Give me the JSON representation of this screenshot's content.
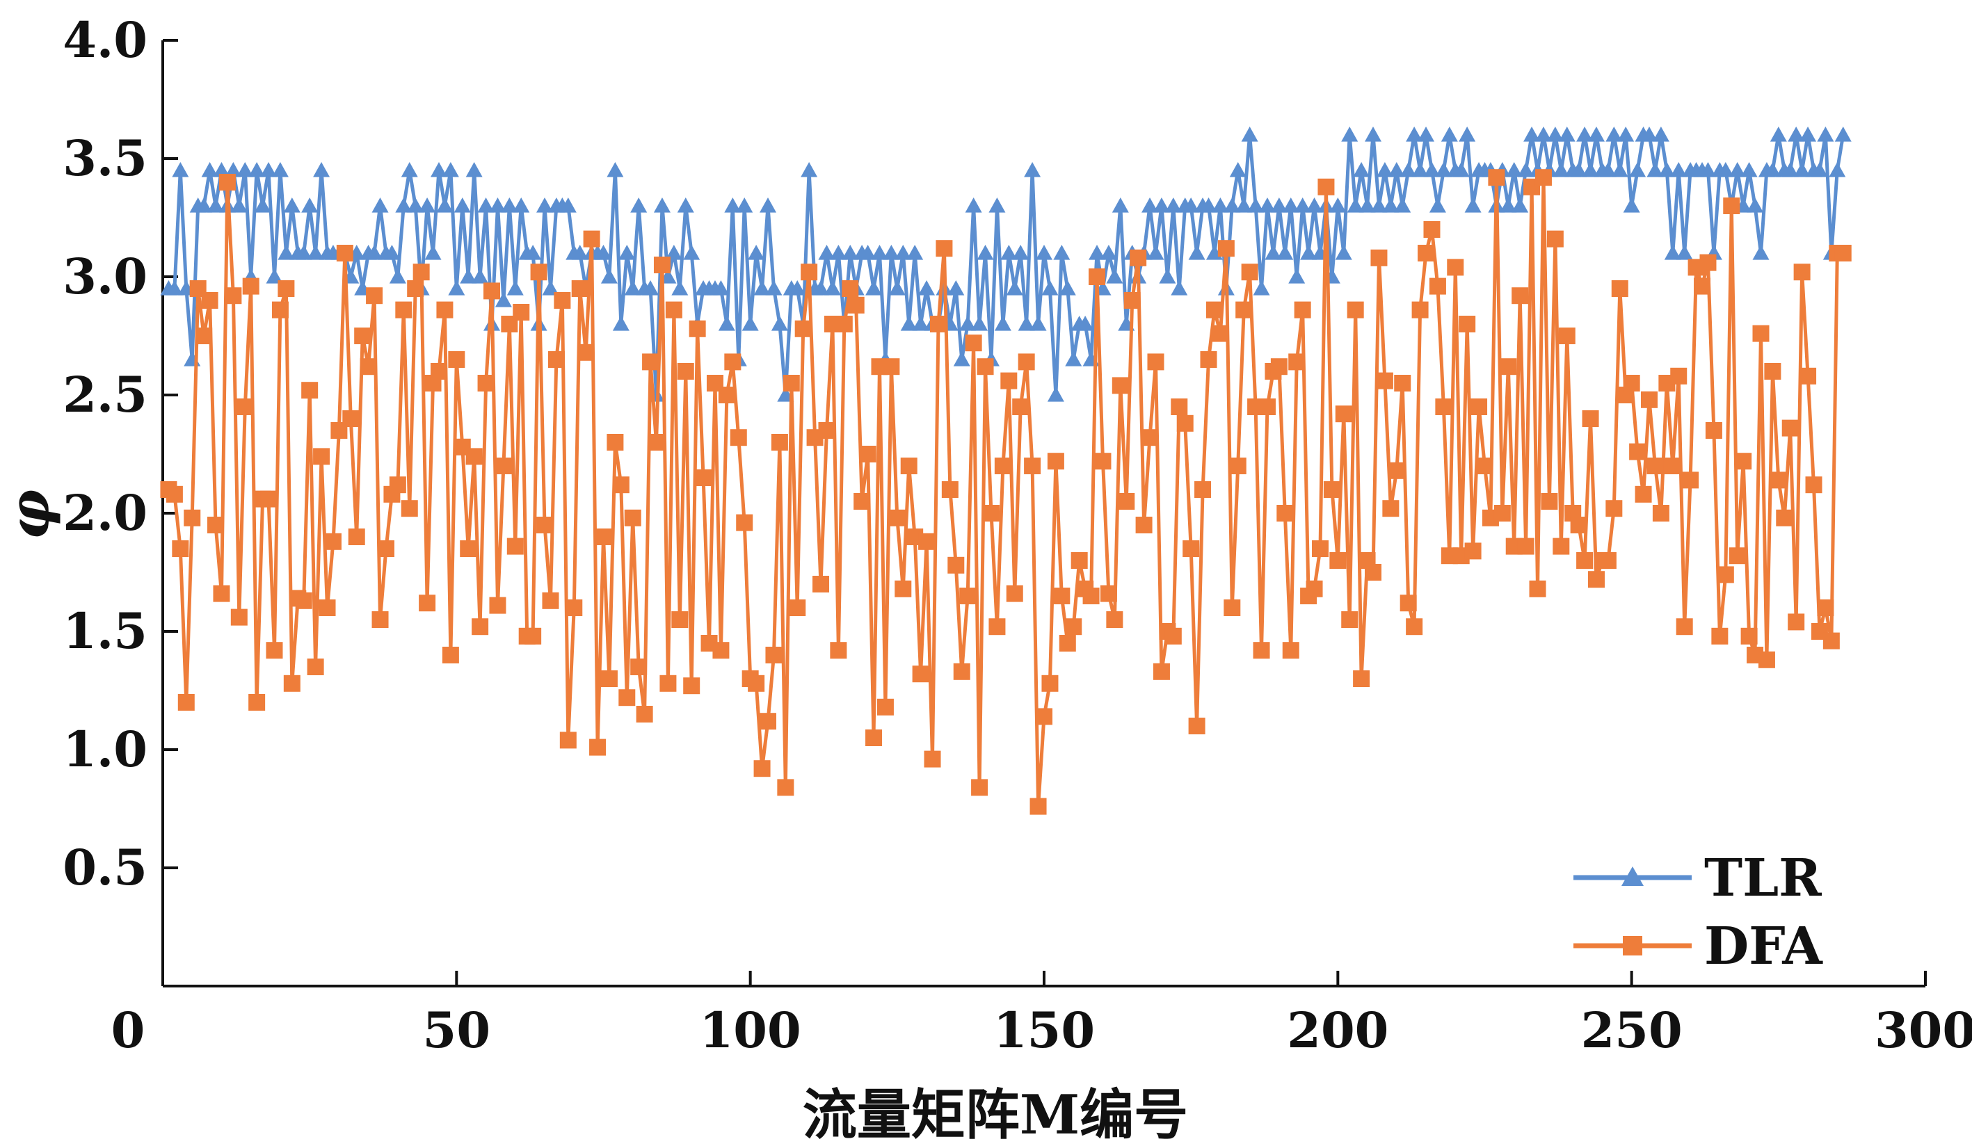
{
  "chart_data": {
    "type": "line",
    "xlabel": "流量矩阵M编号",
    "ylabel": "φ",
    "xlim": [
      0,
      300
    ],
    "ylim": [
      0.0,
      4.0
    ],
    "x_ticks": [
      "0",
      "50",
      "100",
      "150",
      "200",
      "250",
      "300"
    ],
    "y_ticks": [
      "0.5",
      "1.0",
      "1.5",
      "2.0",
      "2.5",
      "3.0",
      "3.5",
      "4.0"
    ],
    "grid": false,
    "legend_position": "bottom-right",
    "series": [
      {
        "name": "TLR",
        "color": "#5b8ed0",
        "marker": "triangle",
        "values": [
          2.95,
          2.95,
          3.45,
          2.95,
          2.65,
          3.3,
          3.3,
          3.45,
          3.3,
          3.45,
          3.3,
          3.45,
          3.3,
          3.45,
          3.0,
          3.45,
          3.3,
          3.45,
          3.0,
          3.45,
          3.1,
          3.3,
          3.1,
          3.1,
          3.3,
          3.1,
          3.45,
          3.1,
          3.1,
          3.1,
          3.1,
          3.0,
          3.1,
          2.95,
          3.1,
          3.1,
          3.3,
          3.1,
          3.1,
          3.0,
          3.3,
          3.45,
          3.3,
          2.95,
          3.3,
          3.1,
          3.45,
          3.3,
          3.45,
          2.95,
          3.3,
          3.0,
          3.45,
          3.0,
          3.3,
          2.8,
          3.3,
          2.9,
          3.3,
          2.95,
          3.3,
          3.1,
          3.1,
          2.8,
          3.3,
          2.95,
          3.3,
          3.3,
          3.3,
          3.1,
          3.1,
          2.95,
          3.1,
          3.1,
          3.1,
          3.0,
          3.45,
          2.8,
          3.1,
          2.95,
          3.3,
          2.95,
          2.95,
          2.5,
          3.3,
          3.0,
          3.1,
          2.95,
          3.3,
          3.1,
          2.8,
          2.95,
          2.95,
          2.95,
          2.95,
          2.8,
          3.3,
          2.65,
          3.3,
          2.8,
          3.1,
          2.95,
          3.3,
          2.95,
          2.8,
          2.5,
          2.95,
          2.95,
          2.8,
          3.45,
          2.95,
          2.95,
          3.1,
          2.95,
          3.1,
          2.8,
          3.1,
          2.95,
          3.1,
          3.1,
          2.95,
          3.1,
          2.65,
          3.1,
          2.95,
          3.1,
          2.8,
          3.1,
          2.8,
          2.95,
          2.8,
          2.8,
          2.95,
          2.8,
          2.95,
          2.65,
          2.8,
          3.3,
          2.8,
          3.1,
          2.65,
          3.3,
          2.8,
          3.1,
          2.95,
          3.1,
          2.8,
          3.45,
          2.8,
          3.1,
          2.95,
          2.5,
          3.1,
          2.95,
          2.65,
          2.8,
          2.8,
          2.65,
          3.1,
          2.95,
          3.1,
          3.0,
          3.3,
          2.8,
          3.1,
          3.0,
          3.1,
          3.3,
          3.1,
          3.3,
          3.0,
          3.3,
          2.95,
          3.3,
          3.3,
          3.1,
          3.3,
          3.3,
          3.1,
          3.3,
          2.95,
          3.3,
          3.45,
          3.3,
          3.6,
          3.3,
          2.95,
          3.3,
          3.1,
          3.3,
          3.1,
          3.3,
          3.0,
          3.3,
          3.1,
          3.3,
          3.1,
          3.3,
          3.0,
          3.3,
          3.1,
          3.6,
          3.3,
          3.45,
          3.3,
          3.6,
          3.3,
          3.45,
          3.3,
          3.45,
          3.3,
          3.45,
          3.6,
          3.45,
          3.6,
          3.45,
          3.3,
          3.45,
          3.6,
          3.45,
          3.45,
          3.6,
          3.3,
          3.45,
          3.45,
          3.45,
          3.3,
          3.45,
          3.3,
          3.45,
          3.3,
          3.45,
          3.6,
          3.45,
          3.6,
          3.45,
          3.6,
          3.45,
          3.6,
          3.45,
          3.45,
          3.6,
          3.45,
          3.6,
          3.45,
          3.45,
          3.6,
          3.45,
          3.6,
          3.3,
          3.45,
          3.6,
          3.6,
          3.45,
          3.6,
          3.45,
          3.1,
          3.45,
          3.1,
          3.45,
          3.45,
          3.45,
          3.45,
          3.1,
          3.45,
          3.45,
          3.3,
          3.45,
          3.3,
          3.45,
          3.3,
          3.1,
          3.45,
          3.45,
          3.6,
          3.45,
          3.45,
          3.6,
          3.45,
          3.6,
          3.45,
          3.45,
          3.6,
          3.1,
          3.45,
          3.6
        ],
        "x_start": 1
      },
      {
        "name": "DFA",
        "color": "#ee7d3a",
        "marker": "square",
        "values": [
          2.1,
          2.08,
          1.85,
          1.2,
          1.98,
          2.95,
          2.75,
          2.9,
          1.95,
          1.66,
          3.4,
          2.92,
          1.56,
          2.45,
          2.96,
          1.2,
          2.06,
          2.06,
          1.42,
          2.86,
          2.95,
          1.28,
          1.64,
          1.63,
          2.52,
          1.35,
          2.24,
          1.6,
          1.88,
          2.35,
          3.1,
          2.4,
          1.9,
          2.75,
          2.62,
          2.92,
          1.55,
          1.85,
          2.08,
          2.12,
          2.86,
          2.02,
          2.95,
          3.02,
          1.62,
          2.55,
          2.6,
          2.86,
          1.4,
          2.65,
          2.28,
          1.85,
          2.24,
          1.52,
          2.55,
          2.94,
          1.61,
          2.2,
          2.8,
          1.86,
          2.85,
          1.48,
          1.48,
          3.02,
          1.95,
          1.63,
          2.65,
          2.9,
          1.04,
          1.6,
          2.95,
          2.68,
          3.16,
          1.01,
          1.9,
          1.3,
          2.3,
          2.12,
          1.22,
          1.98,
          1.35,
          1.15,
          2.64,
          2.3,
          3.05,
          1.28,
          2.86,
          1.55,
          2.6,
          1.27,
          2.78,
          2.15,
          1.45,
          2.55,
          1.42,
          2.5,
          2.64,
          2.32,
          1.96,
          1.3,
          1.28,
          0.92,
          1.12,
          1.4,
          2.3,
          0.84,
          2.55,
          1.6,
          2.78,
          3.02,
          2.32,
          1.7,
          2.35,
          2.8,
          1.42,
          2.8,
          2.95,
          2.88,
          2.05,
          2.25,
          1.05,
          2.62,
          1.18,
          2.62,
          1.98,
          1.68,
          2.2,
          1.9,
          1.32,
          1.88,
          0.96,
          2.8,
          3.12,
          2.1,
          1.78,
          1.33,
          1.65,
          2.72,
          0.84,
          2.62,
          2.0,
          1.52,
          2.2,
          2.56,
          1.66,
          2.45,
          2.64,
          2.2,
          0.76,
          1.14,
          1.28,
          2.22,
          1.65,
          1.45,
          1.52,
          1.8,
          1.68,
          1.65,
          3.0,
          2.22,
          1.66,
          1.55,
          2.54,
          2.05,
          2.9,
          3.08,
          1.95,
          2.32,
          2.64,
          1.33,
          1.5,
          1.48,
          2.45,
          2.38,
          1.85,
          1.1,
          2.1,
          2.65,
          2.86,
          2.76,
          3.12,
          1.6,
          2.2,
          2.86,
          3.02,
          2.45,
          1.42,
          2.45,
          2.6,
          2.62,
          2.0,
          1.42,
          2.64,
          2.86,
          1.65,
          1.68,
          1.85,
          3.38,
          2.1,
          1.8,
          2.42,
          1.55,
          2.86,
          1.3,
          1.8,
          1.75,
          3.08,
          2.56,
          2.02,
          2.18,
          2.55,
          1.62,
          1.52,
          2.86,
          3.1,
          3.2,
          2.96,
          2.45,
          1.82,
          3.04,
          1.82,
          2.8,
          1.84,
          2.45,
          2.2,
          1.98,
          3.42,
          2.0,
          2.62,
          1.86,
          2.92,
          1.86,
          3.38,
          1.68,
          3.42,
          2.05,
          3.16,
          1.86,
          2.75,
          2.0,
          1.95,
          1.8,
          2.4,
          1.72,
          1.8,
          1.8,
          2.02,
          2.95,
          2.5,
          2.55,
          2.26,
          2.08,
          2.48,
          2.2,
          2.0,
          2.55,
          2.2,
          2.58,
          1.52,
          2.14,
          3.04,
          2.96,
          3.06,
          2.35,
          1.48,
          1.74,
          3.3,
          1.82,
          2.22,
          1.48,
          1.4,
          2.76,
          1.38,
          2.6,
          2.14,
          1.98,
          2.36,
          1.54,
          3.02,
          2.58,
          2.12,
          1.5,
          1.6,
          1.46,
          3.1,
          3.1
        ],
        "x_start": 1
      }
    ]
  }
}
